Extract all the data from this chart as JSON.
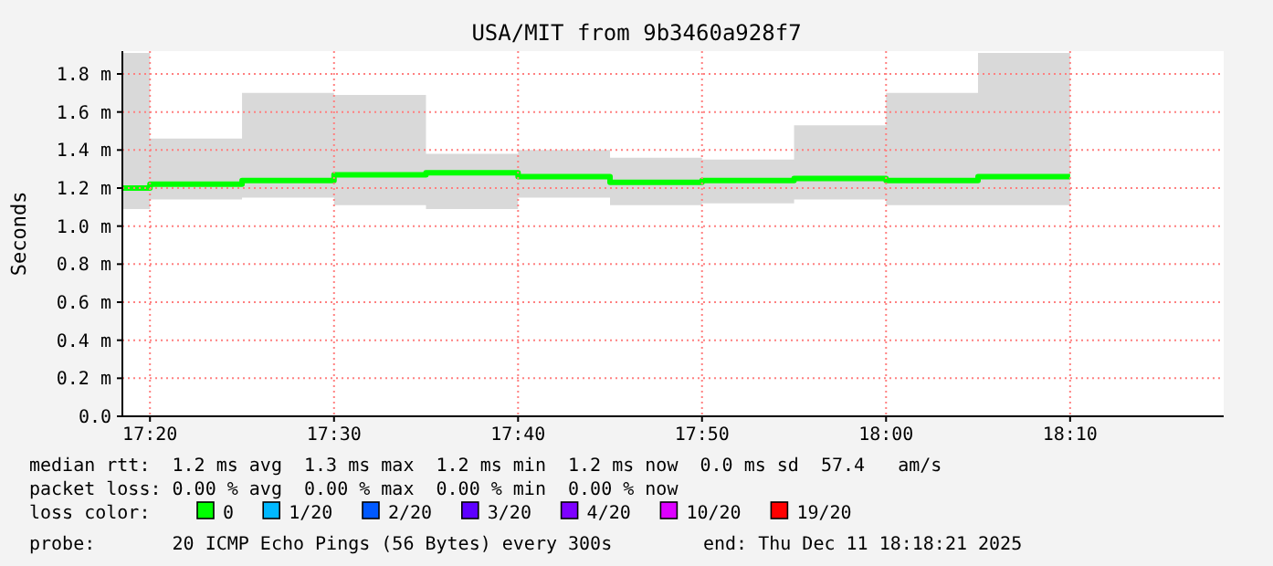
{
  "chart_data": {
    "type": "step",
    "title": "USA/MIT from 9b3460a928f7",
    "ylabel": "Seconds",
    "x": [
      17.3083,
      17.3333,
      17.4167,
      17.5,
      17.5833,
      17.6667,
      17.75,
      17.8333,
      17.9167,
      18,
      18.0833,
      18.1667
    ],
    "xlim": [
      17.3083,
      18.3058
    ],
    "xticks": [
      {
        "value": 17.3333,
        "label": "17:20"
      },
      {
        "value": 17.5,
        "label": "17:30"
      },
      {
        "value": 17.6667,
        "label": "17:40"
      },
      {
        "value": 17.8333,
        "label": "17:50"
      },
      {
        "value": 18,
        "label": "18:00"
      },
      {
        "value": 18.1667,
        "label": "18:10"
      }
    ],
    "ylim": [
      0,
      1.92
    ],
    "yticks": [
      {
        "value": 0,
        "label": "0.0"
      },
      {
        "value": 0.2,
        "label": "0.2 m"
      },
      {
        "value": 0.4,
        "label": "0.4 m"
      },
      {
        "value": 0.6,
        "label": "0.6 m"
      },
      {
        "value": 0.8,
        "label": "0.8 m"
      },
      {
        "value": 1,
        "label": "1.0 m"
      },
      {
        "value": 1.2,
        "label": "1.2 m"
      },
      {
        "value": 1.4,
        "label": "1.4 m"
      },
      {
        "value": 1.6,
        "label": "1.6 m"
      },
      {
        "value": 1.8,
        "label": "1.8 m"
      }
    ],
    "grid": true,
    "legend": "bottom",
    "legend_title": "loss color:",
    "line_style": "solid",
    "marker": "none",
    "series": [
      {
        "name": "0",
        "color": "#00ff00",
        "values": [
          1.2,
          1.22,
          1.24,
          1.27,
          1.28,
          1.26,
          1.23,
          1.24,
          1.25,
          1.24,
          1.26,
          1.26
        ],
        "lower": [
          1.09,
          1.14,
          1.15,
          1.11,
          1.09,
          1.15,
          1.11,
          1.12,
          1.14,
          1.11,
          1.11,
          1.11
        ],
        "upper": [
          1.91,
          1.46,
          1.7,
          1.69,
          1.38,
          1.4,
          1.36,
          1.35,
          1.53,
          1.7,
          1.91,
          1.91
        ]
      },
      {
        "name": "1/20",
        "color": "#00b8ff",
        "values": [
          null,
          null,
          null,
          null,
          null,
          null,
          null,
          null,
          null,
          null,
          null,
          null
        ]
      },
      {
        "name": "2/20",
        "color": "#0059ff",
        "values": [
          null,
          null,
          null,
          null,
          null,
          null,
          null,
          null,
          null,
          null,
          null,
          null
        ]
      },
      {
        "name": "3/20",
        "color": "#5e00ff",
        "values": [
          null,
          null,
          null,
          null,
          null,
          null,
          null,
          null,
          null,
          null,
          null,
          null
        ]
      },
      {
        "name": "4/20",
        "color": "#7e00ff",
        "values": [
          null,
          null,
          null,
          null,
          null,
          null,
          null,
          null,
          null,
          null,
          null,
          null
        ]
      },
      {
        "name": "10/20",
        "color": "#dd00ff",
        "values": [
          null,
          null,
          null,
          null,
          null,
          null,
          null,
          null,
          null,
          null,
          null,
          null
        ]
      },
      {
        "name": "19/20",
        "color": "#ff0000",
        "values": [
          null,
          null,
          null,
          null,
          null,
          null,
          null,
          null,
          null,
          null,
          null,
          null
        ]
      }
    ],
    "annotations": [
      "median rtt:  1.2 ms avg  1.3 ms max  1.2 ms min  1.2 ms now  0.0 ms sd  57.4   am/s",
      "packet loss: 0.00 % avg  0.00 % max  0.00 % min  0.00 % now",
      "probe:       20 ICMP Echo Pings (56 Bytes) every 300s",
      "end: Thu Dec 11 18:18:21 2025"
    ]
  }
}
